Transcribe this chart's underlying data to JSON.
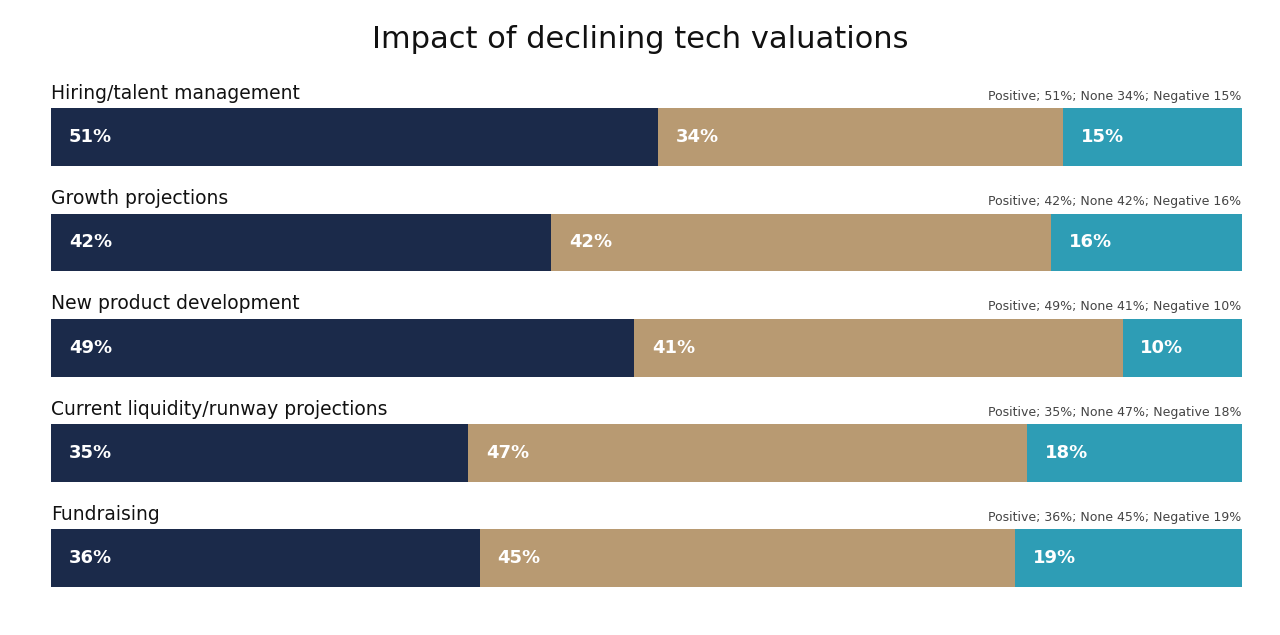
{
  "title": "Impact of declining tech valuations",
  "categories": [
    "Hiring/talent management",
    "Growth projections",
    "New product development",
    "Current liquidity/runway projections",
    "Fundraising"
  ],
  "positive": [
    51,
    42,
    49,
    35,
    36
  ],
  "none": [
    34,
    42,
    41,
    47,
    45
  ],
  "negative": [
    15,
    16,
    10,
    18,
    19
  ],
  "color_positive": "#1b2a4a",
  "color_none": "#b89a72",
  "color_negative": "#2e9db5",
  "background_color": "#ffffff",
  "title_fontsize": 22,
  "category_fontsize": 13.5,
  "bar_label_fontsize": 13,
  "annotation_fontsize": 9,
  "bar_height": 0.55,
  "bar_gap": 1.0
}
